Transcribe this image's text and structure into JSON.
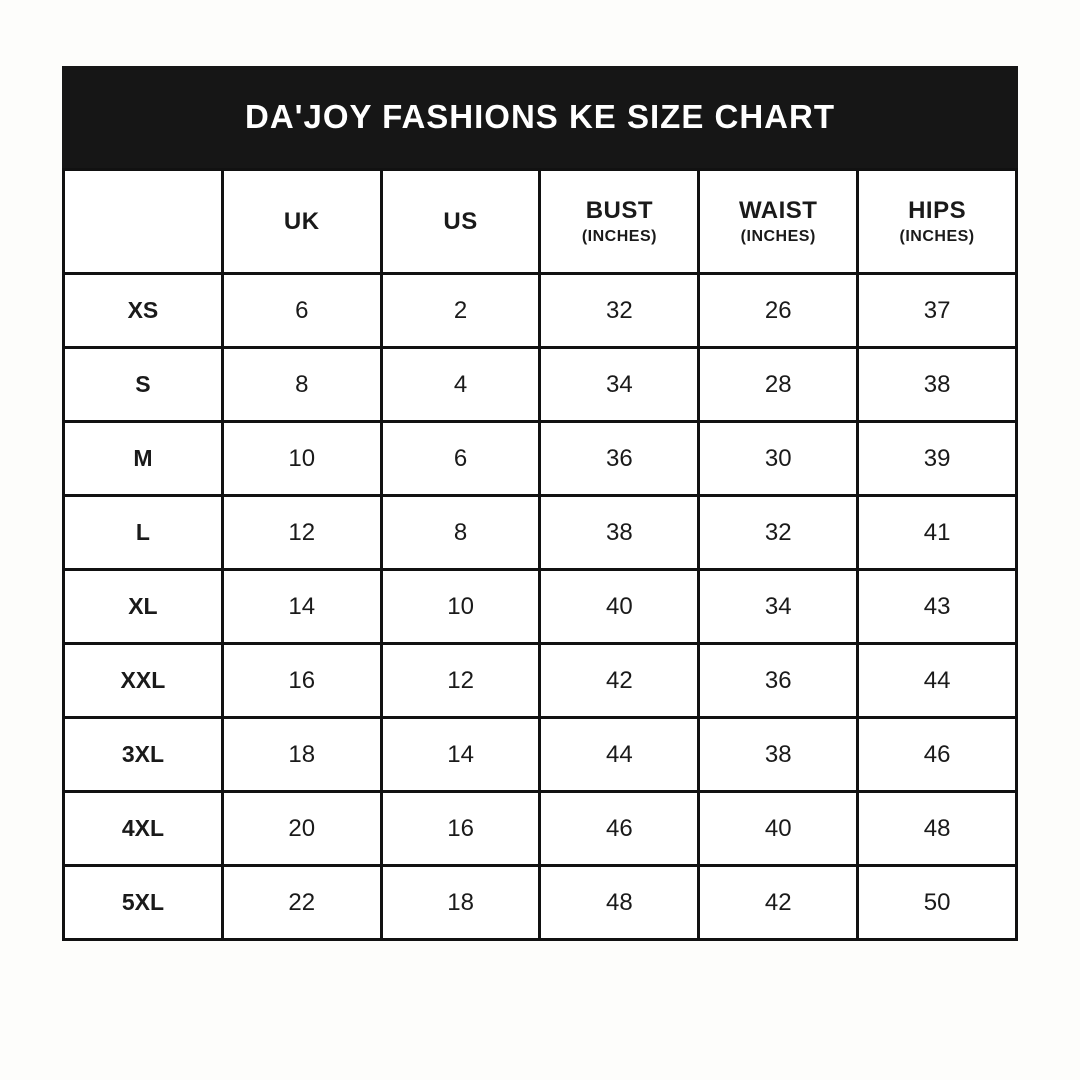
{
  "title": "DA'JOY FASHIONS KE SIZE CHART",
  "colors": {
    "page_bg": "#fdfdfb",
    "banner_bg": "#161616",
    "banner_text": "#ffffff",
    "border": "#111111",
    "cell_bg": "#ffffff",
    "text": "#1a1a1a"
  },
  "header": {
    "columns": [
      {
        "label": "",
        "sub": ""
      },
      {
        "label": "UK",
        "sub": ""
      },
      {
        "label": "US",
        "sub": ""
      },
      {
        "label": "BUST",
        "sub": "(INCHES)"
      },
      {
        "label": "WAIST",
        "sub": "(INCHES)"
      },
      {
        "label": "HIPS",
        "sub": "(INCHES)"
      }
    ]
  },
  "chart_data": {
    "type": "table",
    "title": "DA'JOY FASHIONS KE SIZE CHART",
    "columns": [
      "",
      "UK",
      "US",
      "BUST (INCHES)",
      "WAIST (INCHES)",
      "HIPS (INCHES)"
    ],
    "rows": [
      [
        "XS",
        6,
        2,
        32,
        26,
        37
      ],
      [
        "S",
        8,
        4,
        34,
        28,
        38
      ],
      [
        "M",
        10,
        6,
        36,
        30,
        39
      ],
      [
        "L",
        12,
        8,
        38,
        32,
        41
      ],
      [
        "XL",
        14,
        10,
        40,
        34,
        43
      ],
      [
        "XXL",
        16,
        12,
        42,
        36,
        44
      ],
      [
        "3XL",
        18,
        14,
        44,
        38,
        46
      ],
      [
        "4XL",
        20,
        16,
        46,
        40,
        48
      ],
      [
        "5XL",
        22,
        18,
        48,
        42,
        50
      ]
    ]
  }
}
